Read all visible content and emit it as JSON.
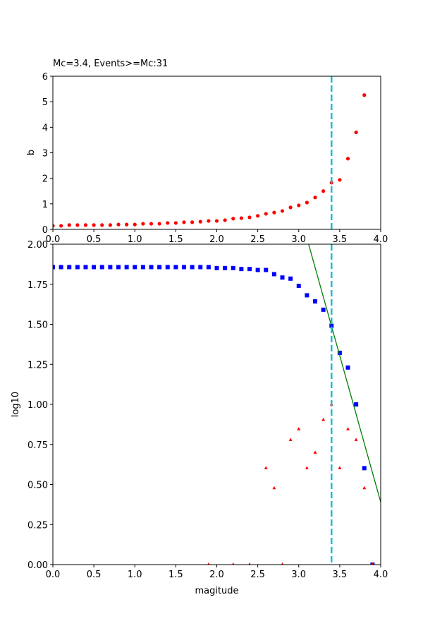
{
  "chart_data": [
    {
      "type": "scatter",
      "title": "Mc=3.4, Events>=Mc:31",
      "xlabel": "",
      "ylabel": "b",
      "xlim": [
        0,
        4.0
      ],
      "ylim": [
        0,
        6
      ],
      "xticks": [
        "0.0",
        "0.5",
        "1.0",
        "1.5",
        "2.0",
        "2.5",
        "3.0",
        "3.5",
        "4.0"
      ],
      "yticks": [
        "0",
        "1",
        "2",
        "3",
        "4",
        "5",
        "6"
      ],
      "grid": false,
      "mc_line": {
        "x": 3.4,
        "color": "#17becf",
        "style": "dashed"
      },
      "series": [
        {
          "marker": "circle",
          "color": "#ff0000",
          "x": [
            0.0,
            0.1,
            0.2,
            0.3,
            0.4,
            0.5,
            0.6,
            0.7,
            0.8,
            0.9,
            1.0,
            1.1,
            1.2,
            1.3,
            1.4,
            1.5,
            1.6,
            1.7,
            1.8,
            1.9,
            2.0,
            2.1,
            2.2,
            2.3,
            2.4,
            2.5,
            2.6,
            2.7,
            2.8,
            2.9,
            3.0,
            3.1,
            3.2,
            3.3,
            3.4,
            3.5,
            3.6,
            3.7,
            3.8
          ],
          "y": [
            0.14,
            0.14,
            0.17,
            0.17,
            0.17,
            0.17,
            0.17,
            0.17,
            0.19,
            0.19,
            0.19,
            0.22,
            0.22,
            0.22,
            0.25,
            0.25,
            0.28,
            0.28,
            0.3,
            0.33,
            0.33,
            0.36,
            0.42,
            0.44,
            0.47,
            0.53,
            0.61,
            0.66,
            0.72,
            0.86,
            0.94,
            1.05,
            1.25,
            1.5,
            1.83,
            1.94,
            2.77,
            3.8,
            5.26
          ]
        }
      ]
    },
    {
      "type": "scatter",
      "title": "",
      "xlabel": "magitude",
      "ylabel": "log10",
      "xlim": [
        0,
        4.0
      ],
      "ylim": [
        0,
        2.0
      ],
      "xticks": [
        "0.0",
        "0.5",
        "1.0",
        "1.5",
        "2.0",
        "2.5",
        "3.0",
        "3.5",
        "4.0"
      ],
      "yticks": [
        "0.00",
        "0.25",
        "0.50",
        "0.75",
        "1.00",
        "1.25",
        "1.50",
        "1.75",
        "2.00"
      ],
      "grid": false,
      "mc_line": {
        "x": 3.4,
        "color": "#17becf",
        "style": "dashed"
      },
      "fit_line": {
        "a": 7.71,
        "b": 1.83,
        "color": "#008000"
      },
      "series": [
        {
          "marker": "square",
          "color": "#0000ff",
          "x": [
            0.0,
            0.1,
            0.2,
            0.3,
            0.4,
            0.5,
            0.6,
            0.7,
            0.8,
            0.9,
            1.0,
            1.1,
            1.2,
            1.3,
            1.4,
            1.5,
            1.6,
            1.7,
            1.8,
            1.9,
            2.0,
            2.1,
            2.2,
            2.3,
            2.4,
            2.5,
            2.6,
            2.7,
            2.8,
            2.9,
            3.0,
            3.1,
            3.2,
            3.3,
            3.4,
            3.5,
            3.6,
            3.7,
            3.8,
            3.9
          ],
          "y": [
            1.857,
            1.857,
            1.857,
            1.857,
            1.857,
            1.857,
            1.857,
            1.857,
            1.857,
            1.857,
            1.857,
            1.857,
            1.857,
            1.857,
            1.857,
            1.857,
            1.857,
            1.857,
            1.857,
            1.857,
            1.851,
            1.851,
            1.851,
            1.845,
            1.845,
            1.839,
            1.839,
            1.813,
            1.792,
            1.785,
            1.74,
            1.681,
            1.643,
            1.591,
            1.491,
            1.322,
            1.23,
            1.0,
            0.602,
            0.0
          ]
        },
        {
          "marker": "triangle",
          "color": "#ff0000",
          "x": [
            1.9,
            2.2,
            2.4,
            2.6,
            2.7,
            2.8,
            2.9,
            3.0,
            3.1,
            3.2,
            3.3,
            3.4,
            3.5,
            3.6,
            3.7,
            3.8,
            3.9
          ],
          "y": [
            0,
            0,
            0,
            0.602,
            0.477,
            0,
            0.778,
            0.845,
            0.602,
            0.699,
            0.903,
            1.0,
            0.602,
            0.845,
            0.778,
            0.477,
            0
          ]
        }
      ]
    }
  ]
}
